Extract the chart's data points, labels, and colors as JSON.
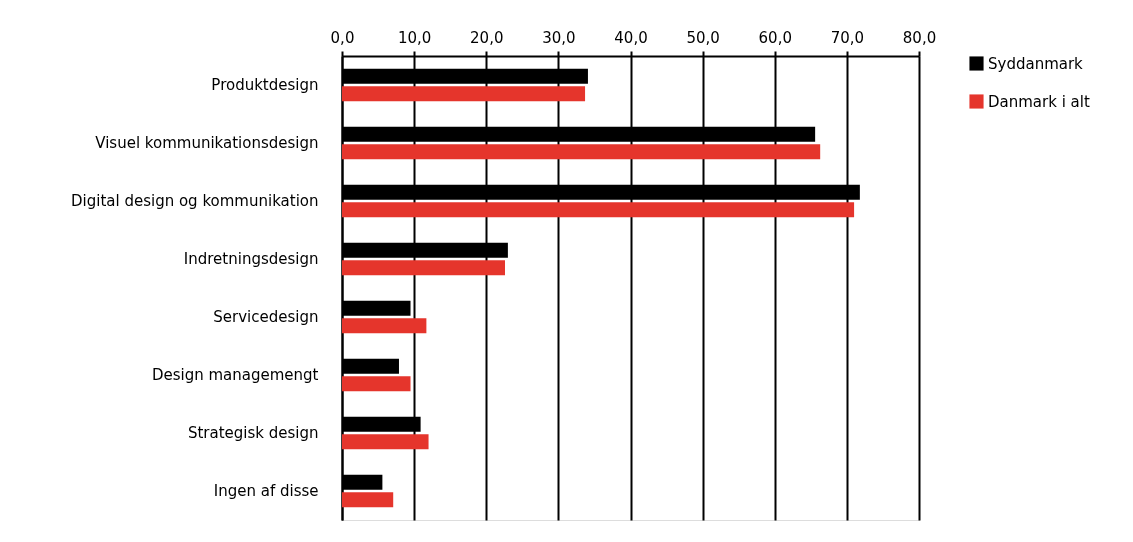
{
  "chart_data": {
    "type": "bar",
    "orientation": "horizontal",
    "categories": [
      "Produktdesign",
      "Visuel kommunikationsdesign",
      "Digital design og kommunikation",
      "Indretningsdesign",
      "Servicedesign",
      "Design managemengt",
      "Strategisk design",
      "Ingen af disse"
    ],
    "series": [
      {
        "name": "Syddanmark",
        "color": "#000000",
        "values": [
          34.1,
          65.6,
          71.8,
          23.0,
          9.5,
          7.9,
          10.9,
          5.6
        ]
      },
      {
        "name": "Danmark i alt",
        "color": "#e5352c",
        "values": [
          33.7,
          66.3,
          71.0,
          22.6,
          11.7,
          9.5,
          12.0,
          7.1
        ]
      }
    ],
    "xlim": [
      0,
      80
    ],
    "xticks": [
      {
        "value": 0,
        "label": "0,0"
      },
      {
        "value": 10,
        "label": "10,0"
      },
      {
        "value": 20,
        "label": "20,0"
      },
      {
        "value": 30,
        "label": "30,0"
      },
      {
        "value": 40,
        "label": "40,0"
      },
      {
        "value": 50,
        "label": "50,0"
      },
      {
        "value": 60,
        "label": "60,0"
      },
      {
        "value": 70,
        "label": "70,0"
      },
      {
        "value": 80,
        "label": "80,0"
      }
    ],
    "grid": "x",
    "legend": "right"
  }
}
